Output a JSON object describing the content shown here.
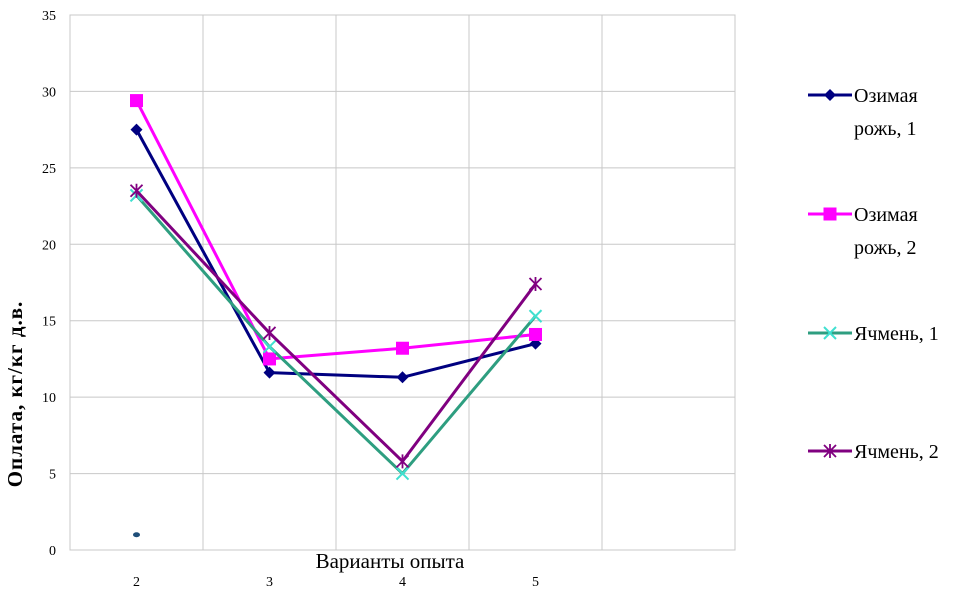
{
  "chart_data": {
    "type": "line",
    "title": "",
    "xlabel": "Варианты опыта",
    "ylabel": "Оплата, кг/кг д.в.",
    "categories": [
      "2",
      "3",
      "4",
      "5"
    ],
    "ylim": [
      0,
      35
    ],
    "yticks": [
      "0",
      "5",
      "10",
      "15",
      "20",
      "25",
      "30",
      "35"
    ],
    "grid": true,
    "legend": "right",
    "series": [
      {
        "name": [
          "Озимая",
          "рожь, 1"
        ],
        "values": [
          27.5,
          11.6,
          11.3,
          13.5
        ],
        "color": "#000080",
        "marker": "diamond"
      },
      {
        "name": [
          "Озимая",
          "рожь, 2"
        ],
        "values": [
          29.4,
          12.5,
          13.2,
          14.1
        ],
        "color": "#FF00FF",
        "marker": "square"
      },
      {
        "name": [
          "Ячмень, 1"
        ],
        "values": [
          23.2,
          13.3,
          5.0,
          15.3
        ],
        "color": "#2E9E80",
        "marker": "x",
        "marker_color": "#40E0D0"
      },
      {
        "name": [
          "Ячмень, 2"
        ],
        "values": [
          23.5,
          14.2,
          5.8,
          17.4
        ],
        "color": "#800080",
        "marker": "star"
      }
    ],
    "extra_point": {
      "x": "2",
      "y": 1.0,
      "color": "#1F4E79"
    }
  }
}
